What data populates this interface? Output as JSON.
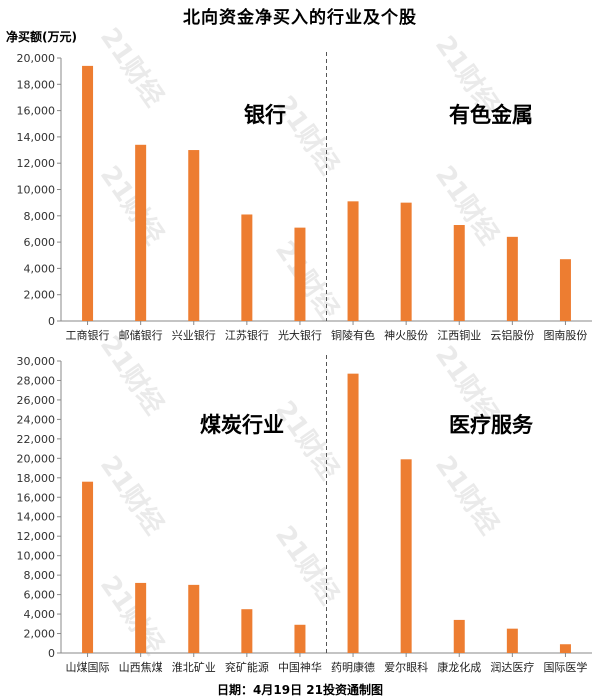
{
  "title": "北向资金净买入的行业及个股",
  "unit_label": "净买额(万元)",
  "footer": "日期：4月19日 21投资通制图",
  "watermark": "21财经",
  "colors": {
    "bar": "#ed7d31",
    "axis": "#888888",
    "divider": "#555555"
  },
  "chart_data": [
    {
      "type": "bar",
      "ylim": [
        0,
        20000
      ],
      "ytick_step": 2000,
      "groups": [
        {
          "label": "银行",
          "categories": [
            "工商银行",
            "邮储银行",
            "兴业银行",
            "江苏银行",
            "光大银行"
          ]
        },
        {
          "label": "有色金属",
          "categories": [
            "铜陵有色",
            "神火股份",
            "江西铜业",
            "云铝股份",
            "图南股份"
          ]
        }
      ],
      "categories": [
        "工商银行",
        "邮储银行",
        "兴业银行",
        "江苏银行",
        "光大银行",
        "铜陵有色",
        "神火股份",
        "江西铜业",
        "云铝股份",
        "图南股份"
      ],
      "values": [
        19400,
        13400,
        13000,
        8100,
        7100,
        9100,
        9000,
        7300,
        6400,
        4700
      ]
    },
    {
      "type": "bar",
      "ylim": [
        0,
        30000
      ],
      "ytick_step": 2000,
      "groups": [
        {
          "label": "煤炭行业",
          "categories": [
            "山煤国际",
            "山西焦煤",
            "淮北矿业",
            "兖矿能源",
            "中国神华"
          ]
        },
        {
          "label": "医疗服务",
          "categories": [
            "药明康德",
            "爱尔眼科",
            "康龙化成",
            "润达医疗",
            "国际医学"
          ]
        }
      ],
      "categories": [
        "山煤国际",
        "山西焦煤",
        "淮北矿业",
        "兖矿能源",
        "中国神华",
        "药明康德",
        "爱尔眼科",
        "康龙化成",
        "润达医疗",
        "国际医学"
      ],
      "values": [
        17600,
        7200,
        7000,
        4500,
        2900,
        28700,
        19900,
        3400,
        2500,
        900
      ]
    }
  ]
}
